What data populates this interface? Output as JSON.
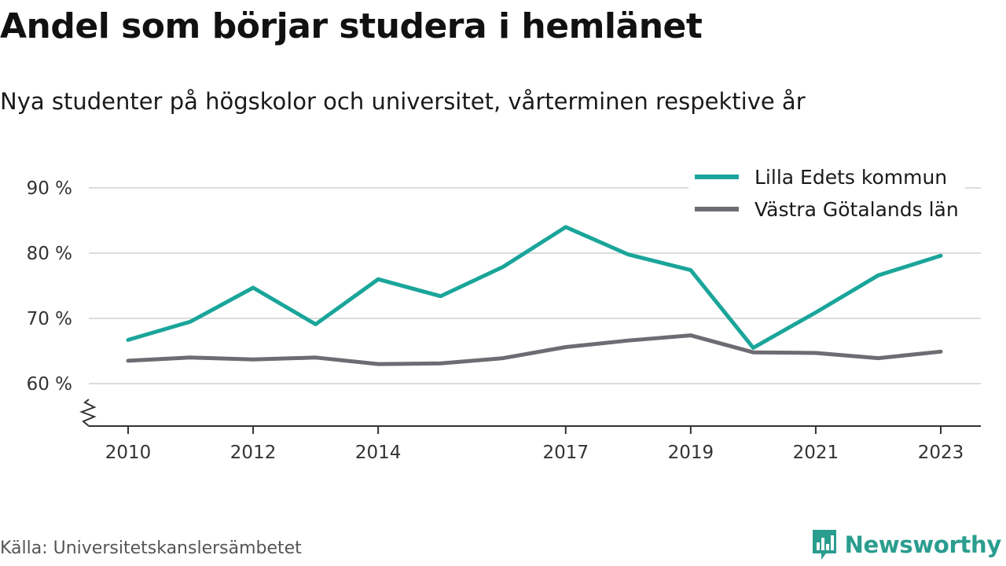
{
  "title": "Andel som börjar studera i hemlänet",
  "subtitle": "Nya studenter på högskolor och universitet, vårterminen respektive år",
  "source": "Källa: Universitetskanslersämbetet",
  "brand": {
    "name": "Newsworthy",
    "icon": "newsworthy-logo-icon",
    "color": "#2a9d8f"
  },
  "chart_data": {
    "type": "line",
    "x": [
      2010,
      2011,
      2012,
      2013,
      2014,
      2015,
      2016,
      2017,
      2018,
      2019,
      2020,
      2021,
      2022,
      2023
    ],
    "x_tick_labels": [
      "2010",
      "2012",
      "2014",
      "2017",
      "2019",
      "2021",
      "2023"
    ],
    "y_tick_labels": [
      "60 %",
      "70 %",
      "80 %",
      "90 %"
    ],
    "y_ticks": [
      60,
      70,
      80,
      90
    ],
    "ylim": [
      54,
      92
    ],
    "y_axis_break": true,
    "grid": "horizontal",
    "legend_position": "top-right",
    "series": [
      {
        "name": "Lilla Edets kommun",
        "color": "#1aa59a",
        "values": [
          66.7,
          69.5,
          74.7,
          69.1,
          76.0,
          73.4,
          77.9,
          84.0,
          79.8,
          77.4,
          65.5,
          70.9,
          76.6,
          79.6
        ]
      },
      {
        "name": "Västra Götalands län",
        "color": "#6e6c72",
        "values": [
          63.5,
          64.0,
          63.7,
          64.0,
          63.0,
          63.1,
          63.9,
          65.6,
          66.6,
          67.4,
          64.8,
          64.7,
          63.9,
          64.9
        ]
      }
    ]
  }
}
